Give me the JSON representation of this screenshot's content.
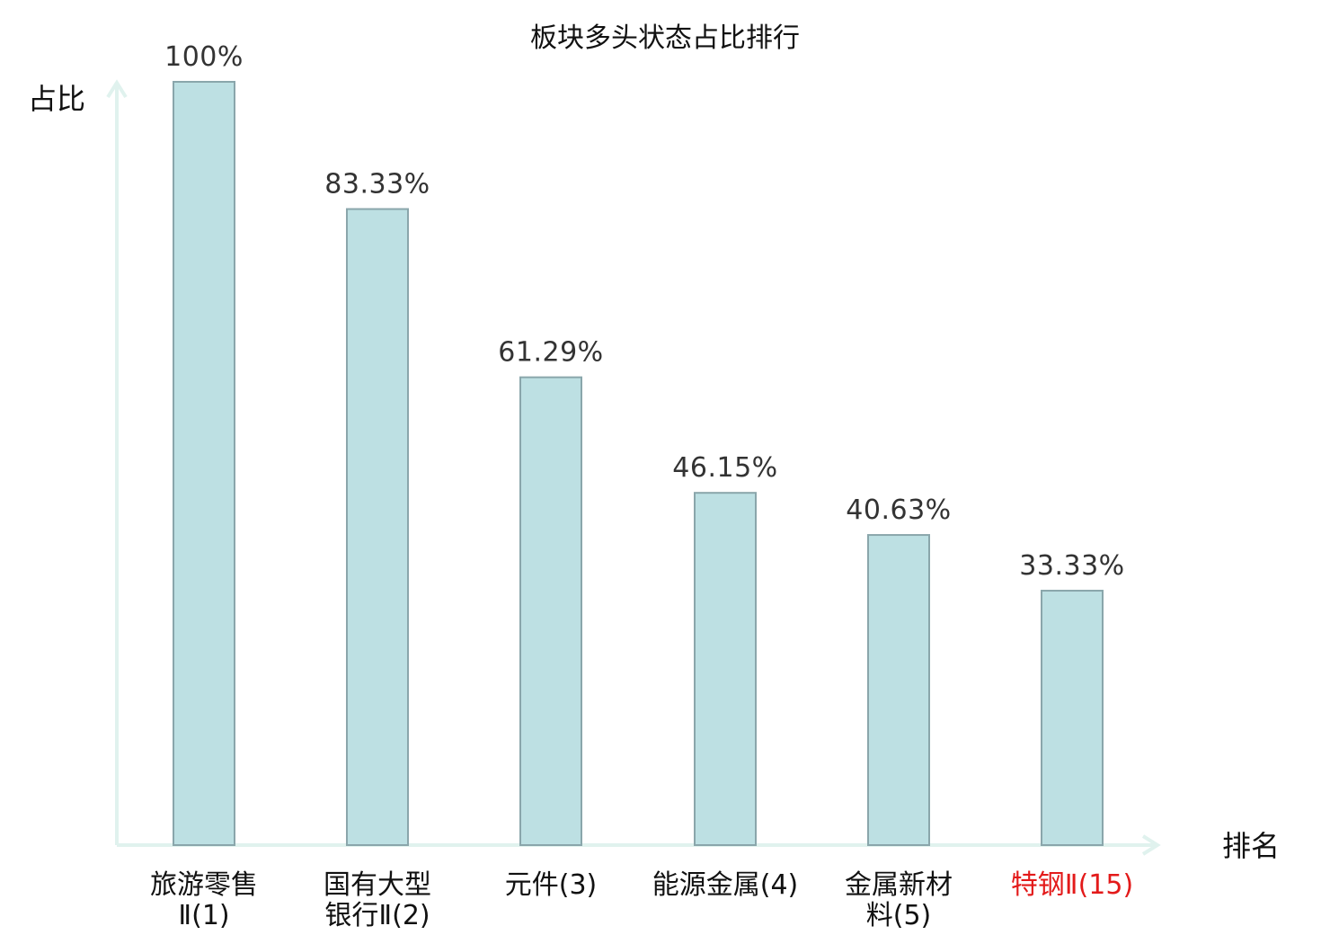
{
  "chart_data": {
    "type": "bar",
    "title": "板块多头状态占比排行",
    "xlabel": "排名",
    "ylabel": "占比",
    "ylim": [
      0,
      100
    ],
    "grid": false,
    "categories": [
      [
        "旅游零售",
        "Ⅱ(1)"
      ],
      [
        "国有大型",
        "银行Ⅱ(2)"
      ],
      [
        "元件(3)"
      ],
      [
        "能源金属(4)"
      ],
      [
        "金属新材",
        "料(5)"
      ],
      [
        "特钢Ⅱ(15)"
      ]
    ],
    "values": [
      100,
      83.33,
      61.29,
      46.15,
      40.63,
      33.33
    ],
    "value_labels": [
      "100%",
      "83.33%",
      "61.29%",
      "46.15%",
      "40.63%",
      "33.33%"
    ],
    "highlight_index": 5,
    "colors": {
      "bar_fill": "#bde0e3",
      "bar_stroke": "#8aa6ab",
      "axis": "#e0f2ee",
      "text": "#111111",
      "value_text": "#333333",
      "highlight_text": "#e31a1a"
    }
  }
}
